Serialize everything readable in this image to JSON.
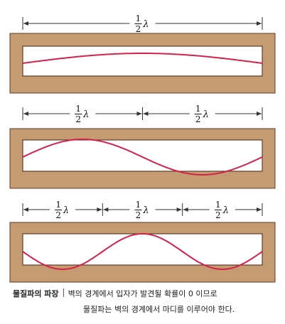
{
  "colors": {
    "frame_fill": "#c59b72",
    "frame_stroke": "#5a3e2b",
    "wave": "#d4204a",
    "arrow": "#333333"
  },
  "panels": [
    {
      "loops": 1,
      "label_num": "1",
      "label_den": "2",
      "label_sym": "λ"
    },
    {
      "loops": 2,
      "label_num": "1",
      "label_den": "2",
      "label_sym": "λ"
    },
    {
      "loops": 3,
      "label_num": "1",
      "label_den": "2",
      "label_sym": "λ"
    }
  ],
  "caption": {
    "title": "물질파의 파장",
    "line1": "벽의 경계에서 입자가 발견될 확률이 0 이므로",
    "line2": "물질파는 벽의 경계에서 마디를 이루어야 한다."
  }
}
